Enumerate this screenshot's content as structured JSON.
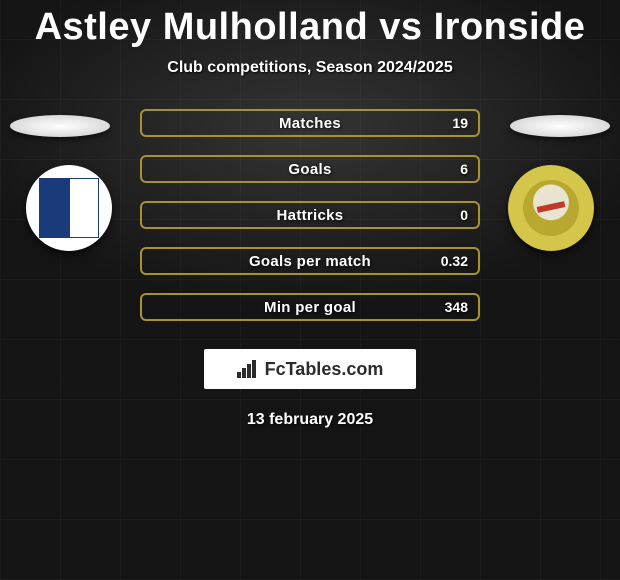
{
  "title": "Astley Mulholland vs Ironside",
  "subtitle": "Club competitions, Season 2024/2025",
  "date": "13 february 2025",
  "logo_text": "FcTables.com",
  "colors": {
    "bar_border": "#a8912f",
    "text": "#ffffff",
    "badge_left_bg": "#ffffff",
    "badge_right_bg": "#d4c64a"
  },
  "stats": [
    {
      "label": "Matches",
      "value": "19"
    },
    {
      "label": "Goals",
      "value": "6"
    },
    {
      "label": "Hattricks",
      "value": "0"
    },
    {
      "label": "Goals per match",
      "value": "0.32"
    },
    {
      "label": "Min per goal",
      "value": "348"
    }
  ]
}
